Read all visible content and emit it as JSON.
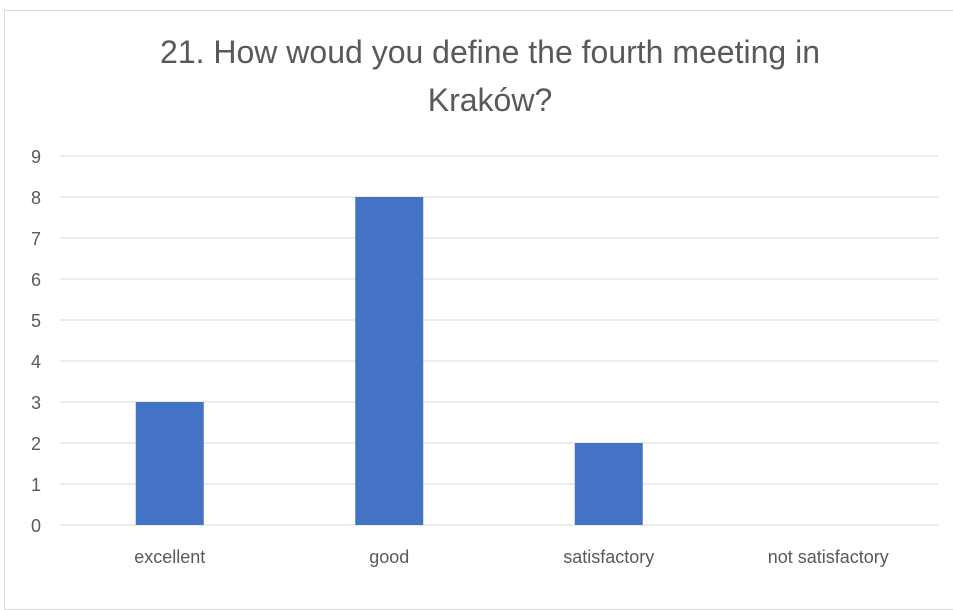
{
  "chart_data": {
    "type": "bar",
    "title_lines": [
      "21. How woud you define the fourth meeting in",
      "Kraków?"
    ],
    "categories": [
      "excellent",
      "good",
      "satisfactory",
      "not satisfactory"
    ],
    "values": [
      3,
      8,
      2,
      0
    ],
    "ylim": [
      0,
      9
    ],
    "yticks": [
      0,
      1,
      2,
      3,
      4,
      5,
      6,
      7,
      8,
      9
    ],
    "grid": true,
    "legend": "none",
    "bar_color": "#4472c4",
    "grid_color": "#d9d9d9",
    "text_color": "#595959"
  }
}
